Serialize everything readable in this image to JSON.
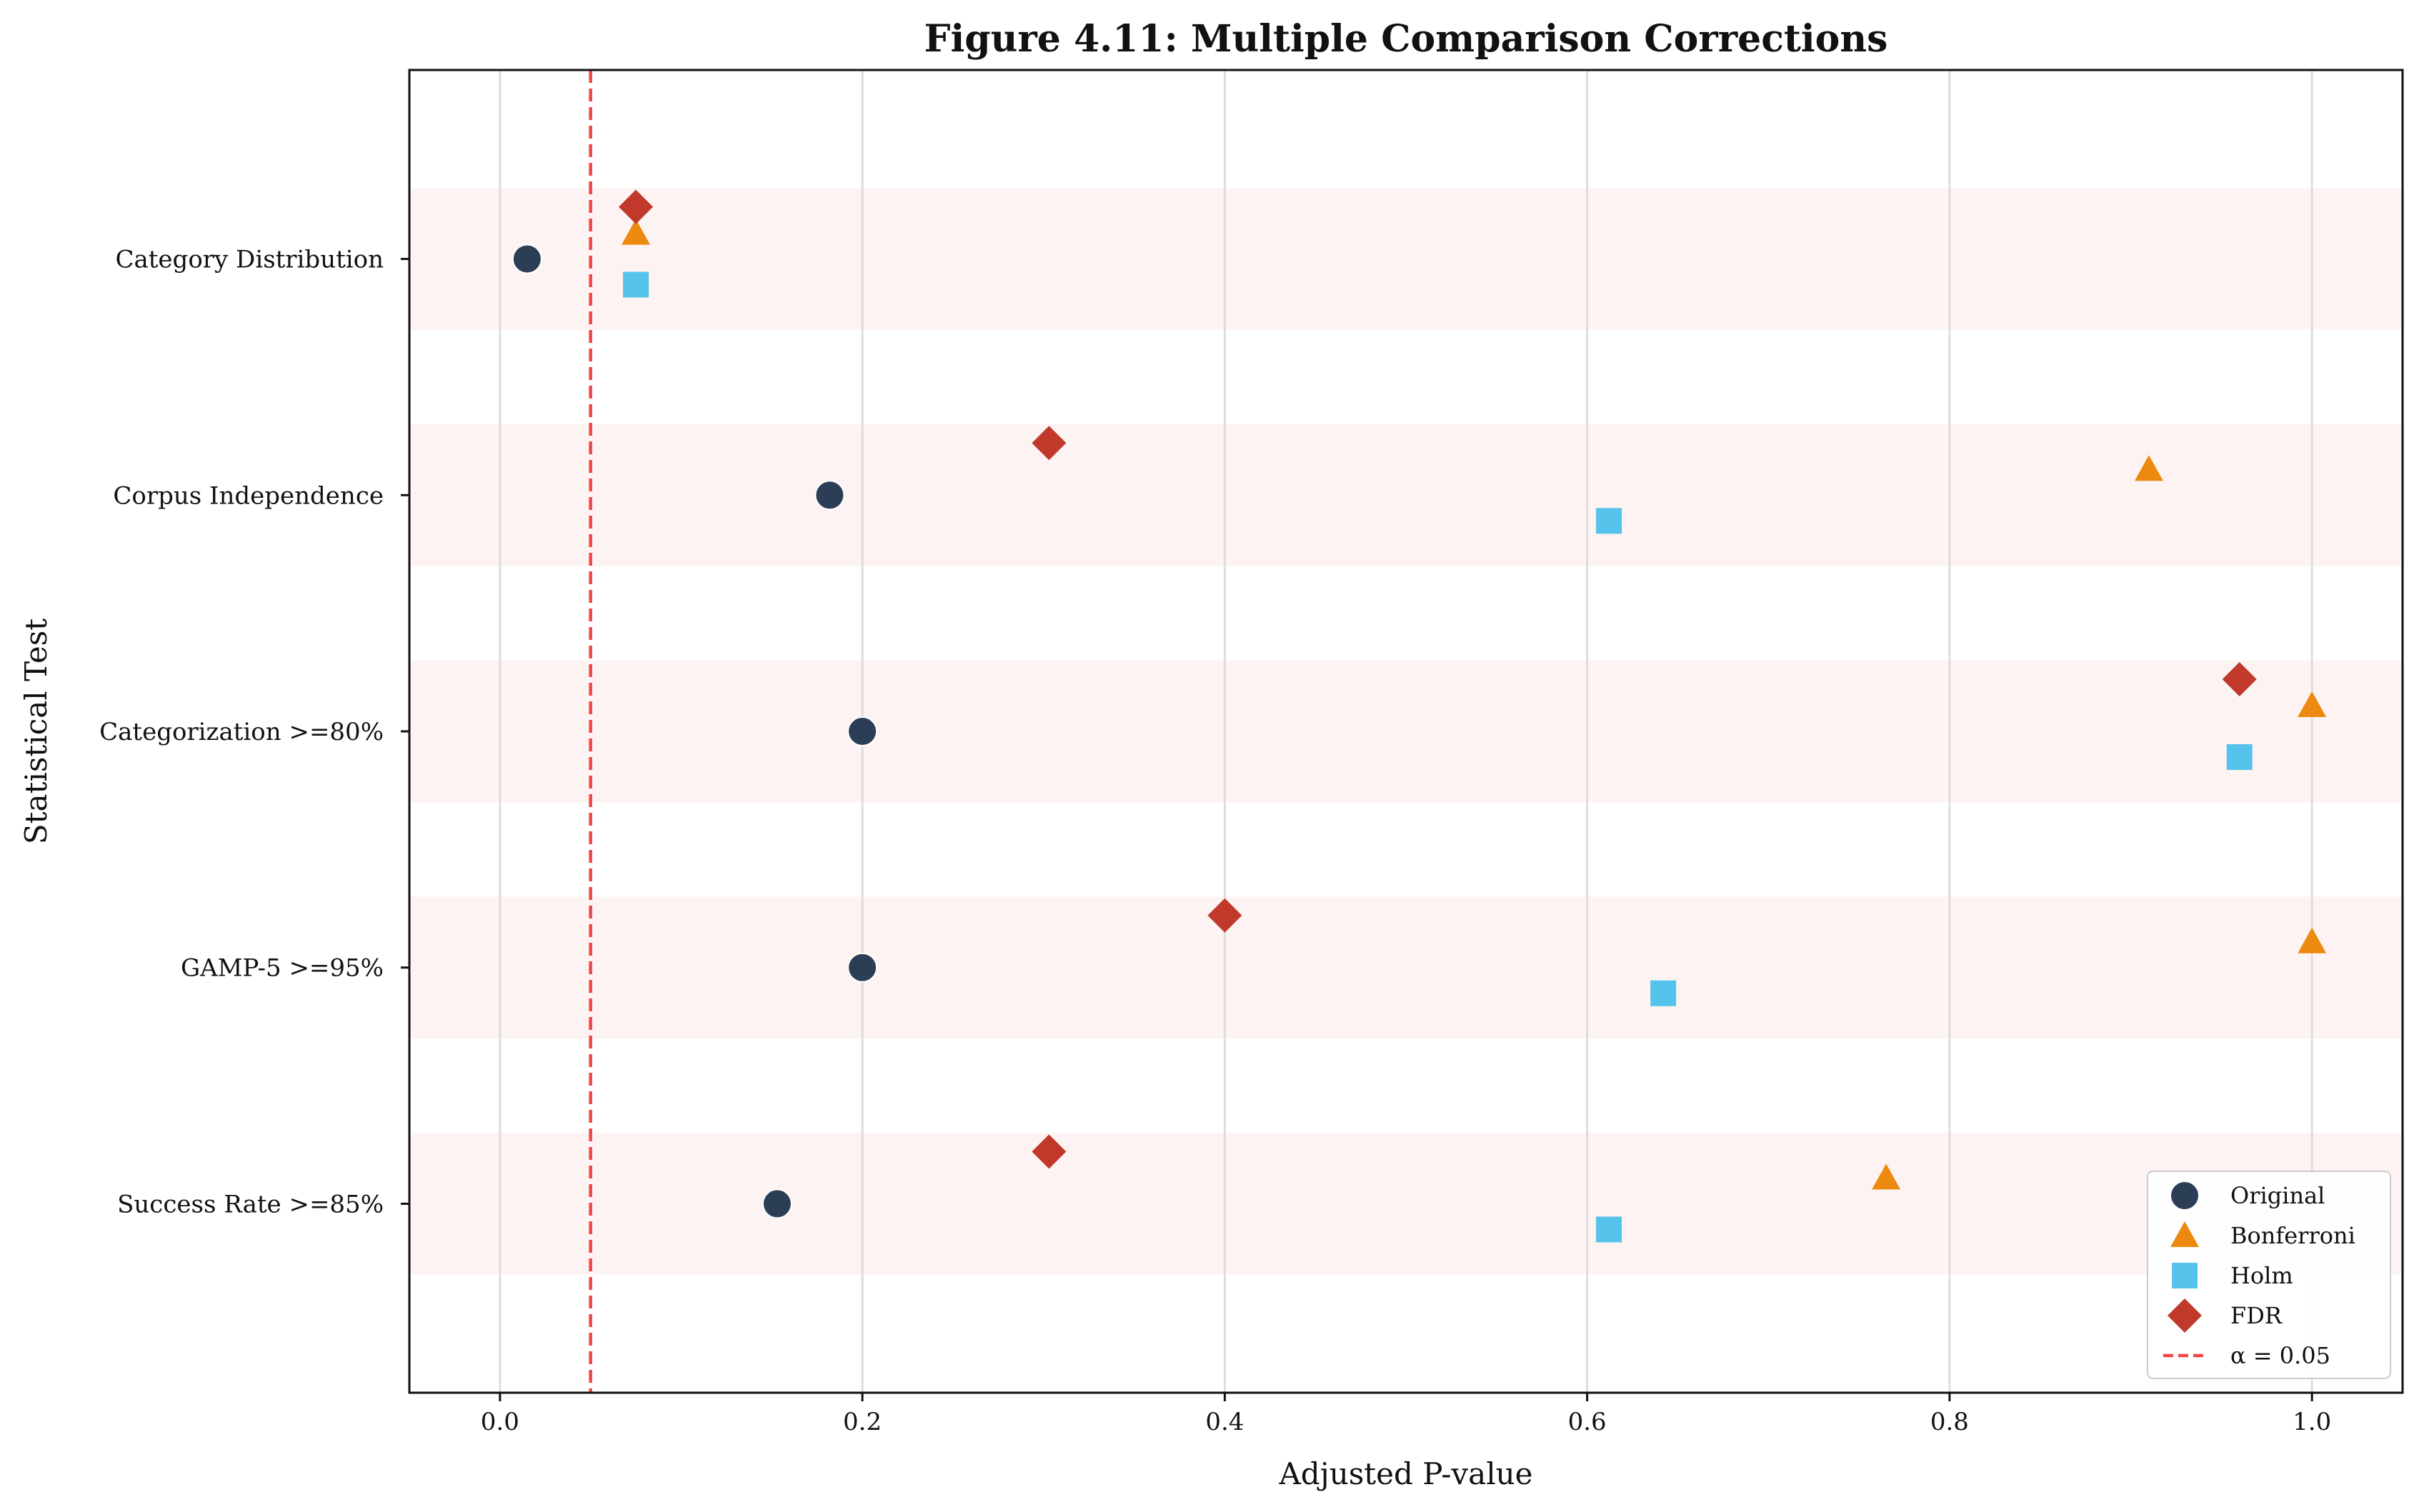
{
  "chart_data": {
    "type": "scatter",
    "title": "Figure 4.11: Multiple Comparison Corrections",
    "xlabel": "Adjusted P-value",
    "ylabel": "Statistical Test",
    "xlim": [
      -0.05,
      1.05
    ],
    "xticks": [
      0.0,
      0.2,
      0.4,
      0.6,
      0.8,
      1.0
    ],
    "xtick_labels": [
      "0.0",
      "0.2",
      "0.4",
      "0.6",
      "0.8",
      "1.0"
    ],
    "categories": [
      "Category Distribution",
      "Corpus Independence",
      "Categorization >=80%",
      "GAMP-5 >=95%",
      "Success Rate >=85%"
    ],
    "grid": "vertical",
    "legend_position": "lower-right",
    "series": [
      {
        "name": "Original",
        "marker": "circle",
        "color": "#2c3e55",
        "values": [
          0.015,
          0.182,
          0.2,
          0.2,
          0.153
        ]
      },
      {
        "name": "Bonferroni",
        "marker": "triangle",
        "color": "#ec8a10",
        "values": [
          0.075,
          0.91,
          1.0,
          1.0,
          0.765
        ]
      },
      {
        "name": "Holm",
        "marker": "square",
        "color": "#55c3ec",
        "values": [
          0.075,
          0.612,
          0.96,
          0.642,
          0.612
        ]
      },
      {
        "name": "FDR",
        "marker": "diamond",
        "color": "#c0392b",
        "values": [
          0.075,
          0.303,
          0.96,
          0.4,
          0.303
        ]
      }
    ],
    "reference_line": {
      "name": "α = 0.05",
      "x": 0.05,
      "color": "#f04545",
      "style": "dashed"
    },
    "band_color": "#fdf3f2"
  }
}
